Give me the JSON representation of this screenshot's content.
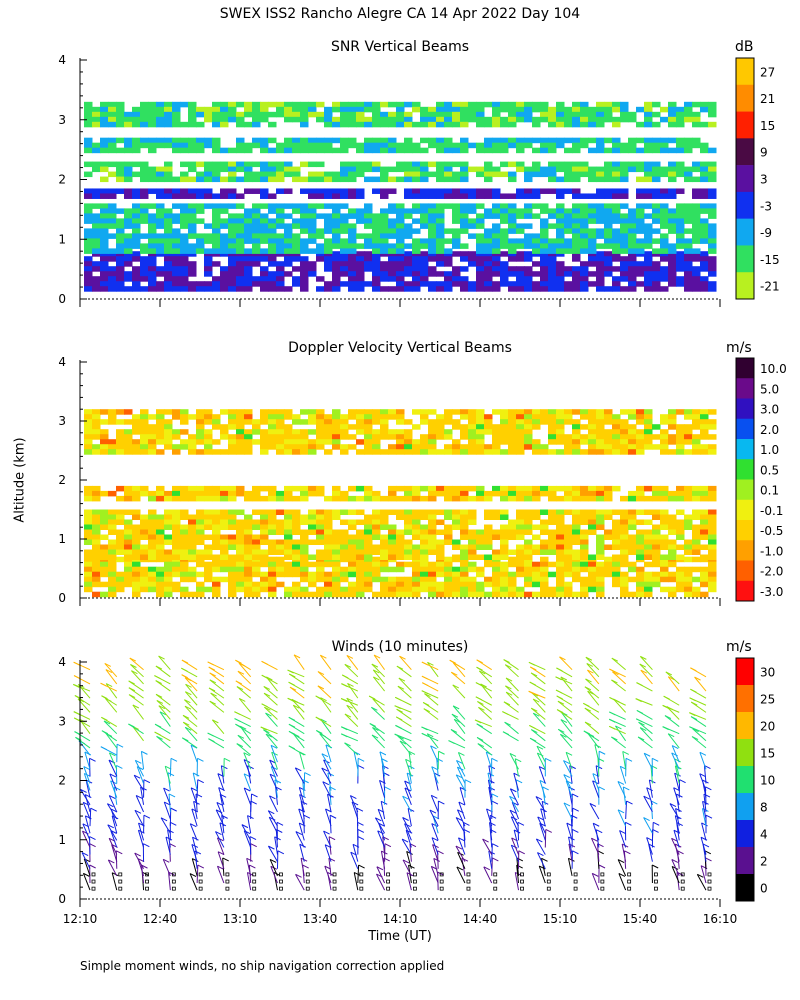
{
  "page_title": "SWEX ISS2 Rancho Alegre CA  14 Apr 2022 Day 104",
  "footer_note": "Simple moment winds, no ship navigation correction applied",
  "y_axis_label": "Altitude (km)",
  "x_axis_label": "Time (UT)",
  "x_ticks": [
    "12:10",
    "12:40",
    "13:10",
    "13:40",
    "14:10",
    "14:40",
    "15:10",
    "15:40",
    "16:10"
  ],
  "y_ticks": [
    "0",
    "1",
    "2",
    "3",
    "4"
  ],
  "chart_data": [
    {
      "type": "heatmap",
      "title": "SNR Vertical Beams",
      "unit": "dB",
      "xlabel": "Time (UT)",
      "ylabel": "Altitude (km)",
      "xlim": [
        "12:10",
        "16:10"
      ],
      "ylim": [
        0,
        4
      ],
      "colorbar": {
        "labels": [
          "27",
          "21",
          "15",
          "9",
          "3",
          "-3",
          "-9",
          "-15",
          "-21"
        ],
        "colors": [
          "#ffc800",
          "#ff8c00",
          "#ff2000",
          "#4a0a44",
          "#5a10a0",
          "#1030f0",
          "#10a8f0",
          "#30e060",
          "#b8f020"
        ]
      },
      "bands": [
        {
          "alt_range": [
            0.2,
            0.8
          ],
          "snr_db": 0
        },
        {
          "alt_range": [
            0.8,
            1.6
          ],
          "snr_db": -12
        },
        {
          "alt_range": [
            1.7,
            1.85
          ],
          "snr_db": 0
        },
        {
          "alt_range": [
            2.0,
            2.3
          ],
          "snr_db": -15
        },
        {
          "alt_range": [
            2.45,
            2.7
          ],
          "snr_db": -13
        },
        {
          "alt_range": [
            2.9,
            3.3
          ],
          "snr_db": -15
        }
      ]
    },
    {
      "type": "heatmap",
      "title": "Doppler Velocity Vertical Beams",
      "unit": "m/s",
      "xlabel": "Time (UT)",
      "ylabel": "Altitude (km)",
      "xlim": [
        "12:10",
        "16:10"
      ],
      "ylim": [
        0,
        4
      ],
      "colorbar": {
        "labels": [
          "10.0",
          "5.0",
          "3.0",
          "2.0",
          "1.0",
          "0.5",
          "0.1",
          "-0.1",
          "-0.5",
          "-1.0",
          "-2.0",
          "-3.0"
        ],
        "colors": [
          "#300030",
          "#6a0a8a",
          "#3010c0",
          "#0850f0",
          "#08b8f0",
          "#30e030",
          "#a0f020",
          "#f0f010",
          "#ffd000",
          "#ffa000",
          "#ff6000",
          "#ff1010"
        ]
      },
      "bands": [
        {
          "alt_range": [
            0.1,
            0.7
          ],
          "velocity_ms": -0.3
        },
        {
          "alt_range": [
            0.7,
            1.5
          ],
          "velocity_ms": -0.2
        },
        {
          "alt_range": [
            1.7,
            1.9
          ],
          "velocity_ms": -0.6
        },
        {
          "alt_range": [
            2.5,
            3.2
          ],
          "velocity_ms": -0.4
        }
      ]
    },
    {
      "type": "scatter",
      "title": "Winds (10 minutes)",
      "unit": "m/s",
      "xlabel": "Time (UT)",
      "ylabel": "Altitude (km)",
      "xlim": [
        "12:10",
        "16:10"
      ],
      "ylim": [
        0,
        4
      ],
      "colorbar": {
        "labels": [
          "30",
          "25",
          "20",
          "15",
          "10",
          "8",
          "4",
          "2",
          "0"
        ],
        "colors": [
          "#ff0000",
          "#ff7000",
          "#ffb800",
          "#90e010",
          "#20e070",
          "#10a0f0",
          "#1020e0",
          "#5a1090",
          "#000000"
        ]
      },
      "wind_speed_profile_ms": [
        {
          "alt_km": 0.3,
          "speed": 2
        },
        {
          "alt_km": 1.0,
          "speed": 6
        },
        {
          "alt_km": 1.8,
          "speed": 8
        },
        {
          "alt_km": 2.4,
          "speed": 11
        },
        {
          "alt_km": 3.0,
          "speed": 16
        },
        {
          "alt_km": 3.6,
          "speed": 20
        }
      ]
    }
  ]
}
